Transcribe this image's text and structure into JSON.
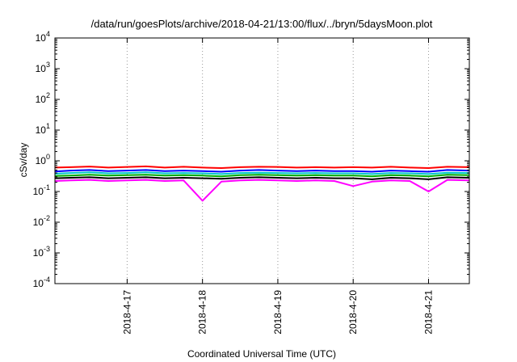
{
  "chart_data": {
    "type": "line",
    "title": "/data/run/goesPlots/archive/2018-04-21/13:00/flux/../bryn/5daysMoon.plot",
    "xlabel": "Coordinated Universal Time (UTC)",
    "ylabel": "cSv/day",
    "y_scale": "log",
    "ylim": [
      0.0001,
      10000
    ],
    "xlim": [
      "2018-04-16T01:00",
      "2018-04-21T13:00"
    ],
    "grid": "x-dotted",
    "legend": "none",
    "y_ticks": [
      {
        "base": "10",
        "exp": "-4",
        "value": 0.0001
      },
      {
        "base": "10",
        "exp": "-3",
        "value": 0.001
      },
      {
        "base": "10",
        "exp": "-2",
        "value": 0.01
      },
      {
        "base": "10",
        "exp": "-1",
        "value": 0.1
      },
      {
        "base": "10",
        "exp": "0",
        "value": 1
      },
      {
        "base": "10",
        "exp": "1",
        "value": 10
      },
      {
        "base": "10",
        "exp": "2",
        "value": 100
      },
      {
        "base": "10",
        "exp": "3",
        "value": 1000
      },
      {
        "base": "10",
        "exp": "4",
        "value": 10000
      }
    ],
    "x_ticks": [
      {
        "label": "2018-4-17",
        "value": "2018-04-17T00:00"
      },
      {
        "label": "2018-4-18",
        "value": "2018-04-18T00:00"
      },
      {
        "label": "2018-4-19",
        "value": "2018-04-19T00:00"
      },
      {
        "label": "2018-4-20",
        "value": "2018-04-20T00:00"
      },
      {
        "label": "2018-4-21",
        "value": "2018-04-21T00:00"
      }
    ],
    "x": [
      "2018-04-16T01:00",
      "2018-04-16T06:00",
      "2018-04-16T12:00",
      "2018-04-16T18:00",
      "2018-04-17T00:00",
      "2018-04-17T06:00",
      "2018-04-17T12:00",
      "2018-04-17T18:00",
      "2018-04-18T00:00",
      "2018-04-18T06:00",
      "2018-04-18T12:00",
      "2018-04-18T18:00",
      "2018-04-19T00:00",
      "2018-04-19T06:00",
      "2018-04-19T12:00",
      "2018-04-19T18:00",
      "2018-04-20T00:00",
      "2018-04-20T06:00",
      "2018-04-20T12:00",
      "2018-04-20T18:00",
      "2018-04-21T00:00",
      "2018-04-21T06:00",
      "2018-04-21T13:00"
    ],
    "series": [
      {
        "color": "#ff0000",
        "values": [
          0.6,
          0.62,
          0.65,
          0.6,
          0.63,
          0.66,
          0.6,
          0.64,
          0.6,
          0.58,
          0.62,
          0.64,
          0.63,
          0.6,
          0.62,
          0.6,
          0.62,
          0.6,
          0.64,
          0.6,
          0.58,
          0.64,
          0.62
        ]
      },
      {
        "color": "#0000ff",
        "values": [
          0.45,
          0.48,
          0.5,
          0.46,
          0.48,
          0.5,
          0.46,
          0.48,
          0.46,
          0.44,
          0.48,
          0.5,
          0.48,
          0.46,
          0.48,
          0.46,
          0.46,
          0.44,
          0.48,
          0.46,
          0.44,
          0.5,
          0.48
        ]
      },
      {
        "color": "#00c8c8",
        "values": [
          0.38,
          0.4,
          0.42,
          0.39,
          0.4,
          0.42,
          0.39,
          0.4,
          0.39,
          0.37,
          0.4,
          0.41,
          0.4,
          0.39,
          0.4,
          0.39,
          0.39,
          0.37,
          0.4,
          0.39,
          0.37,
          0.41,
          0.4
        ]
      },
      {
        "color": "#00aa00",
        "values": [
          0.32,
          0.33,
          0.35,
          0.33,
          0.34,
          0.35,
          0.33,
          0.34,
          0.33,
          0.31,
          0.34,
          0.35,
          0.34,
          0.33,
          0.34,
          0.33,
          0.33,
          0.31,
          0.34,
          0.33,
          0.31,
          0.35,
          0.34
        ]
      },
      {
        "color": "#ff00ff",
        "values": [
          0.22,
          0.23,
          0.24,
          0.22,
          0.23,
          0.24,
          0.22,
          0.23,
          0.05,
          0.21,
          0.23,
          0.24,
          0.23,
          0.22,
          0.23,
          0.22,
          0.15,
          0.21,
          0.23,
          0.22,
          0.1,
          0.24,
          0.23
        ]
      },
      {
        "color": "#000000",
        "values": [
          0.27,
          0.28,
          0.29,
          0.27,
          0.28,
          0.29,
          0.27,
          0.28,
          0.27,
          0.26,
          0.28,
          0.29,
          0.28,
          0.27,
          0.28,
          0.27,
          0.27,
          0.25,
          0.28,
          0.27,
          0.25,
          0.29,
          0.28
        ]
      }
    ]
  }
}
